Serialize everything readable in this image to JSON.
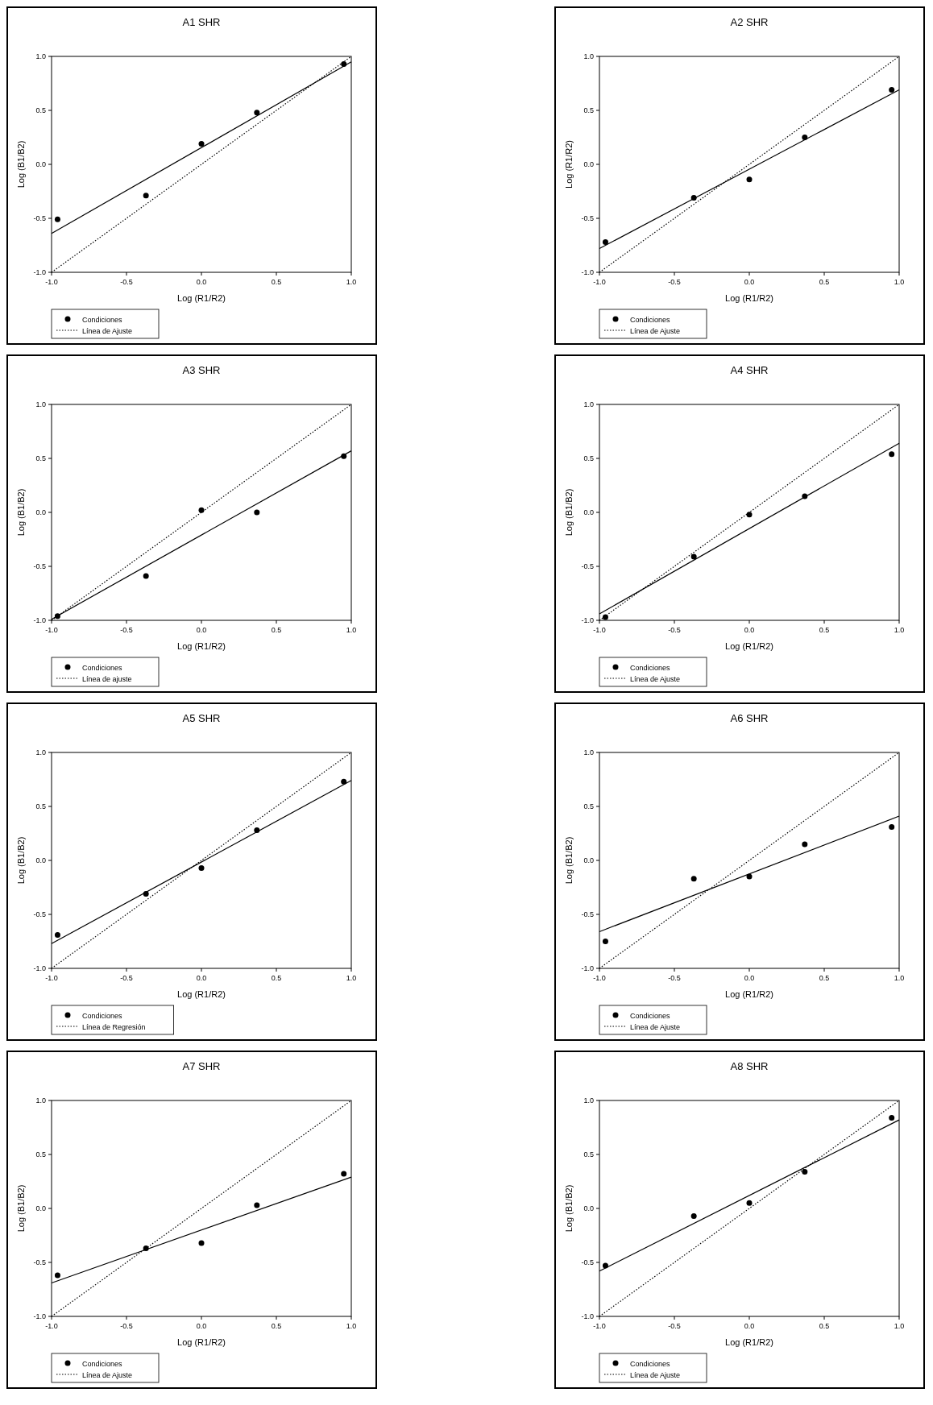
{
  "chart_data": [
    {
      "type": "scatter",
      "title": "A1 SHR",
      "xlabel": "Log (R1/R2)",
      "ylabel": "Log (B1/B2)",
      "xlim": [
        -1,
        1
      ],
      "ylim": [
        -1,
        1
      ],
      "xticks": [
        {
          "value": -1,
          "label": "-1.0"
        },
        {
          "value": -0.5,
          "label": "-0.5"
        },
        {
          "value": 0,
          "label": "0.0"
        },
        {
          "value": 0.5,
          "label": "0.5"
        },
        {
          "value": 1,
          "label": "1.0"
        }
      ],
      "yticks": [
        {
          "value": -1,
          "label": "-1.0"
        },
        {
          "value": -0.5,
          "label": "-0.5"
        },
        {
          "value": 0,
          "label": "0.0"
        },
        {
          "value": 0.5,
          "label": "0.5"
        },
        {
          "value": 1,
          "label": "1.0"
        }
      ],
      "legend": "bottom left",
      "series": [
        {
          "name": "Condiciones",
          "color": "#000000",
          "marker": "circle",
          "x": [
            -0.96,
            -0.37,
            0,
            0.37,
            0.95
          ],
          "values": [
            -0.51,
            -0.29,
            0.19,
            0.48,
            0.93
          ]
        },
        {
          "name": "Línea de Ajuste",
          "type": "line",
          "color": "#000000",
          "line_style": "dotted",
          "x": [
            -1,
            1
          ],
          "values": [
            -1,
            1
          ]
        },
        {
          "type": "line",
          "color": "#000000",
          "line_style": "solid",
          "x": [
            -1,
            1
          ],
          "values": [
            -0.64,
            0.95
          ]
        }
      ]
    },
    {
      "type": "scatter",
      "title": "A2 SHR",
      "xlabel": "Log (R1/R2)",
      "ylabel": "Log (R1/R2)",
      "xlim": [
        -1,
        1
      ],
      "ylim": [
        -1,
        1
      ],
      "xticks": [
        {
          "value": -1,
          "label": "-1.0"
        },
        {
          "value": -0.5,
          "label": "-0.5"
        },
        {
          "value": 0,
          "label": "0.0"
        },
        {
          "value": 0.5,
          "label": "0.5"
        },
        {
          "value": 1,
          "label": "1.0"
        }
      ],
      "yticks": [
        {
          "value": -1,
          "label": "-1.0"
        },
        {
          "value": -0.5,
          "label": "-0.5"
        },
        {
          "value": 0,
          "label": "0.0"
        },
        {
          "value": 0.5,
          "label": "0.5"
        },
        {
          "value": 1,
          "label": "1.0"
        }
      ],
      "legend": "bottom left",
      "series": [
        {
          "name": "Condiciones",
          "type": "scatter",
          "color": "#000000",
          "marker": "circle",
          "x": [
            -0.96,
            -0.37,
            0,
            0.37,
            0.95
          ],
          "values": [
            -0.72,
            -0.31,
            -0.14,
            0.25,
            0.69
          ]
        },
        {
          "name": "Línea de Ajuste",
          "type": "line",
          "color": "#000000",
          "line_style": "dotted",
          "x": [
            -1,
            1
          ],
          "values": [
            -1,
            1
          ]
        },
        {
          "type": "line",
          "color": "#000000",
          "line_style": "solid",
          "x": [
            -1,
            1
          ],
          "values": [
            -0.78,
            0.69
          ]
        }
      ]
    },
    {
      "type": "scatter",
      "title": "A3 SHR",
      "xlabel": "Log (R1/R2)",
      "ylabel": "Log (B1/B2)",
      "xlim": [
        -1,
        1
      ],
      "ylim": [
        -1,
        1
      ],
      "xticks": [
        {
          "value": -1,
          "label": "-1.0"
        },
        {
          "value": -0.5,
          "label": "-0.5"
        },
        {
          "value": 0,
          "label": "0.0"
        },
        {
          "value": 0.5,
          "label": "0.5"
        },
        {
          "value": 1,
          "label": "1.0"
        }
      ],
      "yticks": [
        {
          "value": -1,
          "label": "-1.0"
        },
        {
          "value": -0.5,
          "label": "-0.5"
        },
        {
          "value": 0,
          "label": "0.0"
        },
        {
          "value": 0.5,
          "label": "0.5"
        },
        {
          "value": 1,
          "label": "1.0"
        }
      ],
      "legend": "bottom left",
      "series": [
        {
          "name": "Condiciones",
          "type": "scatter",
          "color": "#000000",
          "marker": "circle",
          "x": [
            -0.96,
            -0.37,
            0,
            0.37,
            0.95
          ],
          "values": [
            -0.96,
            -0.59,
            0.02,
            0,
            0.52
          ]
        },
        {
          "name": "Línea de ajuste",
          "type": "line",
          "color": "#000000",
          "line_style": "dotted",
          "x": [
            -1,
            1
          ],
          "values": [
            -1,
            1
          ]
        },
        {
          "type": "line",
          "color": "#000000",
          "line_style": "solid",
          "x": [
            -1,
            1
          ],
          "values": [
            -0.99,
            0.57
          ]
        }
      ]
    },
    {
      "type": "scatter",
      "title": "A4 SHR",
      "xlabel": "Log (R1/R2)",
      "ylabel": "Log (B1/B2)",
      "xlim": [
        -1,
        1
      ],
      "ylim": [
        -1,
        1
      ],
      "xticks": [
        {
          "value": -1,
          "label": "-1.0"
        },
        {
          "value": -0.5,
          "label": "-0.5"
        },
        {
          "value": 0,
          "label": "0.0"
        },
        {
          "value": 0.5,
          "label": "0.5"
        },
        {
          "value": 1,
          "label": "1.0"
        }
      ],
      "yticks": [
        {
          "value": -1,
          "label": "-1.0"
        },
        {
          "value": -0.5,
          "label": "-0.5"
        },
        {
          "value": 0,
          "label": "0.0"
        },
        {
          "value": 0.5,
          "label": "0.5"
        },
        {
          "value": 1,
          "label": "1.0"
        }
      ],
      "legend": "bottom left",
      "series": [
        {
          "name": "Condiciones",
          "type": "scatter",
          "color": "#000000",
          "marker": "circle",
          "x": [
            -0.96,
            -0.37,
            0,
            0.37,
            0.95
          ],
          "values": [
            -0.97,
            -0.41,
            -0.02,
            0.15,
            0.54
          ]
        },
        {
          "name": "Línea de Ajuste",
          "type": "line",
          "color": "#000000",
          "line_style": "dotted",
          "x": [
            -1,
            1
          ],
          "values": [
            -1,
            1
          ]
        },
        {
          "type": "line",
          "color": "#000000",
          "line_style": "solid",
          "x": [
            -1,
            1
          ],
          "values": [
            -0.94,
            0.64
          ]
        }
      ]
    },
    {
      "type": "scatter",
      "title": "A5 SHR",
      "xlabel": "Log (R1/R2)",
      "ylabel": "Log (B1/B2)",
      "xlim": [
        -1,
        1
      ],
      "ylim": [
        -1,
        1
      ],
      "xticks": [
        {
          "value": -1,
          "label": "-1.0"
        },
        {
          "value": -0.5,
          "label": "-0.5"
        },
        {
          "value": 0,
          "label": "0.0"
        },
        {
          "value": 0.5,
          "label": "0.5"
        },
        {
          "value": 1,
          "label": "1.0"
        }
      ],
      "yticks": [
        {
          "value": -1,
          "label": "-1.0"
        },
        {
          "value": -0.5,
          "label": "-0.5"
        },
        {
          "value": 0,
          "label": "0.0"
        },
        {
          "value": 0.5,
          "label": "0.5"
        },
        {
          "value": 1,
          "label": "1.0"
        }
      ],
      "legend": "bottom left",
      "series": [
        {
          "name": "Condiciones",
          "type": "scatter",
          "color": "#000000",
          "marker": "circle",
          "x": [
            -0.96,
            -0.37,
            0,
            0.37,
            0.95
          ],
          "values": [
            -0.69,
            -0.31,
            -0.07,
            0.28,
            0.73
          ]
        },
        {
          "name": "Línea de Regresión",
          "type": "line",
          "color": "#000000",
          "line_style": "dotted",
          "x": [
            -1,
            1
          ],
          "values": [
            -1,
            1
          ]
        },
        {
          "type": "line",
          "color": "#000000",
          "line_style": "solid",
          "x": [
            -1,
            1
          ],
          "values": [
            -0.77,
            0.74
          ]
        }
      ]
    },
    {
      "type": "scatter",
      "title": "A6 SHR",
      "xlabel": "Log (R1/R2)",
      "ylabel": "Log (B1/B2)",
      "xlim": [
        -1,
        1
      ],
      "ylim": [
        -1,
        1
      ],
      "xticks": [
        {
          "value": -1,
          "label": "-1.0"
        },
        {
          "value": -0.5,
          "label": "-0.5"
        },
        {
          "value": 0,
          "label": "0.0"
        },
        {
          "value": 0.5,
          "label": "0.5"
        },
        {
          "value": 1,
          "label": "1.0"
        }
      ],
      "yticks": [
        {
          "value": -1,
          "label": "-1.0"
        },
        {
          "value": -0.5,
          "label": "-0.5"
        },
        {
          "value": 0,
          "label": "0.0"
        },
        {
          "value": 0.5,
          "label": "0.5"
        },
        {
          "value": 1,
          "label": "1.0"
        }
      ],
      "legend": "bottom left",
      "series": [
        {
          "name": "Condiciones",
          "type": "scatter",
          "color": "#000000",
          "marker": "circle",
          "x": [
            -0.96,
            -0.37,
            0,
            0.37,
            0.95
          ],
          "values": [
            -0.75,
            -0.17,
            -0.15,
            0.15,
            0.31
          ]
        },
        {
          "name": "Línea de Ajuste",
          "type": "line",
          "color": "#000000",
          "line_style": "dotted",
          "x": [
            -1,
            1
          ],
          "values": [
            -1,
            1
          ]
        },
        {
          "type": "line",
          "color": "#000000",
          "line_style": "solid",
          "x": [
            -1,
            1
          ],
          "values": [
            -0.66,
            0.41
          ]
        }
      ]
    },
    {
      "type": "scatter",
      "title": "A7 SHR",
      "xlabel": "Log (R1/R2)",
      "ylabel": "Log (B1/B2)",
      "xlim": [
        -1,
        1
      ],
      "ylim": [
        -1,
        1
      ],
      "xticks": [
        {
          "value": -1,
          "label": "-1.0"
        },
        {
          "value": -0.5,
          "label": "-0.5"
        },
        {
          "value": 0,
          "label": "0.0"
        },
        {
          "value": 0.5,
          "label": "0.5"
        },
        {
          "value": 1,
          "label": "1.0"
        }
      ],
      "yticks": [
        {
          "value": -1,
          "label": "-1.0"
        },
        {
          "value": -0.5,
          "label": "-0.5"
        },
        {
          "value": 0,
          "label": "0.0"
        },
        {
          "value": 0.5,
          "label": "0.5"
        },
        {
          "value": 1,
          "label": "1.0"
        }
      ],
      "legend": "bottom left",
      "series": [
        {
          "name": "Condiciones",
          "type": "scatter",
          "color": "#000000",
          "marker": "circle",
          "x": [
            -0.96,
            -0.37,
            0,
            0.37,
            0.95
          ],
          "values": [
            -0.62,
            -0.37,
            -0.32,
            0.03,
            0.32
          ]
        },
        {
          "name": "Línea de Ajuste",
          "type": "line",
          "color": "#000000",
          "line_style": "dotted",
          "x": [
            -1,
            1
          ],
          "values": [
            -1,
            1
          ]
        },
        {
          "type": "line",
          "color": "#000000",
          "line_style": "solid",
          "x": [
            -1,
            1
          ],
          "values": [
            -0.69,
            0.29
          ]
        }
      ]
    },
    {
      "type": "scatter",
      "title": "A8 SHR",
      "xlabel": "Log (R1/R2)",
      "ylabel": "Log (B1/B2)",
      "xlim": [
        -1,
        1
      ],
      "ylim": [
        -1,
        1
      ],
      "xticks": [
        {
          "value": -1,
          "label": "-1.0"
        },
        {
          "value": -0.5,
          "label": "-0.5"
        },
        {
          "value": 0,
          "label": "0.0"
        },
        {
          "value": 0.5,
          "label": "0.5"
        },
        {
          "value": 1,
          "label": "1.0"
        }
      ],
      "yticks": [
        {
          "value": -1,
          "label": "-1.0"
        },
        {
          "value": -0.5,
          "label": "-0.5"
        },
        {
          "value": 0,
          "label": "0.0"
        },
        {
          "value": 0.5,
          "label": "0.5"
        },
        {
          "value": 1,
          "label": "1.0"
        }
      ],
      "legend": "bottom left",
      "series": [
        {
          "name": "Condiciones",
          "type": "scatter",
          "color": "#000000",
          "marker": "circle",
          "x": [
            -0.96,
            -0.37,
            0,
            0.37,
            0.95
          ],
          "values": [
            -0.53,
            -0.07,
            0.05,
            0.34,
            0.84
          ]
        },
        {
          "name": "Línea de Ajuste",
          "type": "line",
          "color": "#000000",
          "line_style": "dotted",
          "x": [
            -1,
            1
          ],
          "values": [
            -1,
            1
          ]
        },
        {
          "type": "line",
          "color": "#000000",
          "line_style": "solid",
          "x": [
            -1,
            1
          ],
          "values": [
            -0.58,
            0.82
          ]
        }
      ]
    }
  ]
}
